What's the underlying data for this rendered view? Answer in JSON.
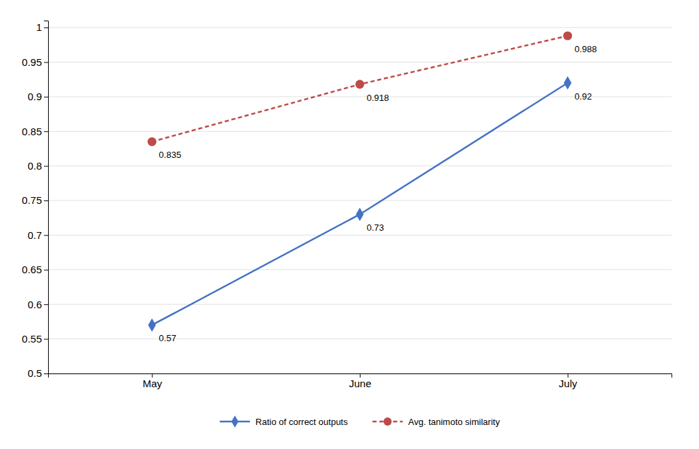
{
  "chart_data": {
    "type": "line",
    "categories": [
      "May",
      "June",
      "July"
    ],
    "series": [
      {
        "name": "Ratio of correct outputs",
        "color": "#4472C4",
        "values": [
          0.57,
          0.73,
          0.92
        ],
        "marker": "diamond",
        "line_style": "solid"
      },
      {
        "name": "Avg. tanimoto similarity",
        "color": "#BE4B48",
        "values": [
          0.835,
          0.918,
          0.988
        ],
        "marker": "circle",
        "line_style": "dashed"
      }
    ],
    "ylim": [
      0.5,
      1.01
    ],
    "yticks": [
      0.5,
      0.55,
      0.6,
      0.65,
      0.7,
      0.75,
      0.8,
      0.85,
      0.9,
      0.95,
      1
    ],
    "grid": true,
    "legend": "bottom",
    "data_labels": true
  }
}
